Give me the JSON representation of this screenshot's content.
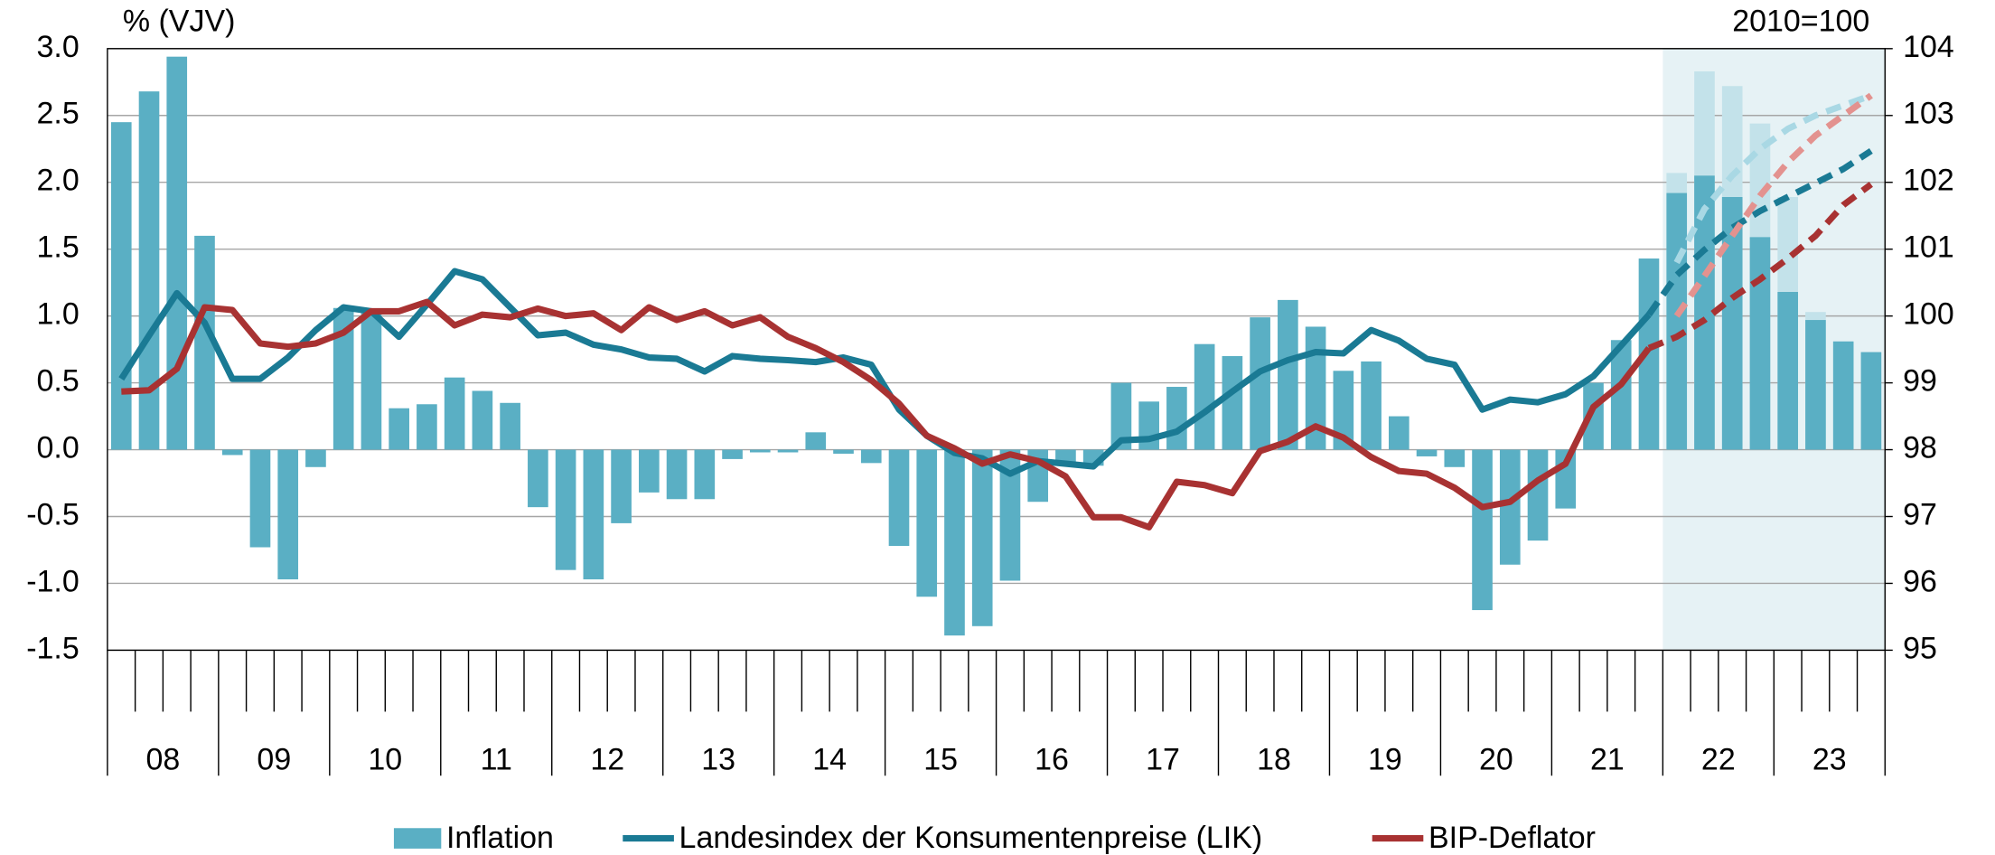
{
  "chart_data": {
    "type": "bar_line",
    "y_label": "% (VJV)",
    "y2_label": "2010=100",
    "categories": [
      "08",
      "09",
      "10",
      "11",
      "12",
      "13",
      "14",
      "15",
      "16",
      "17",
      "18",
      "19",
      "20",
      "21",
      "22",
      "23"
    ],
    "ylim": [
      -1.5,
      3
    ],
    "yticks": [
      {
        "value": 3,
        "label": "3.0"
      },
      2.5,
      {
        "value": 2,
        "label": "2.0"
      },
      1.5,
      {
        "value": 1,
        "label": "1.0"
      },
      0.5,
      {
        "value": 0,
        "label": "0.0"
      },
      -0.5,
      {
        "value": -1,
        "label": "-1.0"
      },
      -1.5
    ],
    "y2lim": [
      95,
      104
    ],
    "y2ticks": [
      95,
      96,
      97,
      98,
      99,
      100,
      101,
      102,
      103,
      104
    ],
    "grid": true,
    "forecast_from": "22",
    "forecast_shading_color": "#e6f2f5",
    "series": [
      {
        "name": "Inflation",
        "type": "bar",
        "color": "#5aafc4",
        "previous_color": "#c3e2ea",
        "values": [
          [
            2.45,
            2.68,
            2.94,
            1.6
          ],
          [
            -0.04,
            -0.73,
            -0.97,
            -0.13
          ],
          [
            1.06,
            1.04,
            0.31,
            0.34
          ],
          [
            0.54,
            0.44,
            0.35,
            -0.43
          ],
          [
            -0.9,
            -0.97,
            -0.55,
            -0.32
          ],
          [
            -0.37,
            -0.37,
            -0.07,
            -0.02
          ],
          [
            -0.02,
            0.13,
            -0.03,
            -0.1
          ],
          [
            -0.72,
            -1.1,
            -1.39,
            -1.32
          ],
          [
            -0.98,
            -0.39,
            -0.12,
            -0.12
          ],
          [
            0.5,
            0.36,
            0.47,
            0.79
          ],
          [
            0.7,
            0.99,
            1.12,
            0.92
          ],
          [
            0.59,
            0.66,
            0.25,
            -0.05
          ],
          [
            -0.13,
            -1.2,
            -0.86,
            -0.68
          ],
          [
            -0.44,
            0.5,
            0.82,
            1.43
          ],
          [
            1.92,
            2.05,
            1.89,
            1.59
          ],
          [
            1.18,
            0.97,
            0.81,
            0.73
          ]
        ],
        "previous_values": [
          [
            null,
            null,
            null,
            null
          ],
          [
            null,
            null,
            null,
            null
          ],
          [
            null,
            null,
            null,
            null
          ],
          [
            null,
            null,
            null,
            null
          ],
          [
            null,
            null,
            null,
            null
          ],
          [
            null,
            null,
            null,
            null
          ],
          [
            null,
            null,
            null,
            null
          ],
          [
            null,
            null,
            null,
            null
          ],
          [
            null,
            null,
            null,
            null
          ],
          [
            null,
            null,
            null,
            null
          ],
          [
            null,
            null,
            null,
            null
          ],
          [
            null,
            null,
            null,
            null
          ],
          [
            null,
            null,
            null,
            null
          ],
          [
            null,
            null,
            null,
            null
          ],
          [
            2.07,
            2.83,
            2.72,
            2.44
          ],
          [
            1.89,
            1.03,
            null,
            null
          ]
        ]
      },
      {
        "name": "Landesindex der Konsumentenpreise (LIK)",
        "type": "line",
        "axis": "y2",
        "color": "#1a7a94",
        "previous_color": "#a9d8e4",
        "values": [
          [
            99.06,
            99.71,
            100.34,
            99.9
          ],
          [
            99.06,
            99.06,
            99.38,
            99.79
          ],
          [
            100.13,
            100.07,
            99.69,
            100.17
          ],
          [
            100.67,
            100.55,
            100.13,
            99.71
          ],
          [
            99.75,
            99.57,
            99.5,
            99.38
          ],
          [
            99.36,
            99.17,
            99.4,
            99.36
          ],
          [
            99.34,
            99.31,
            99.38,
            99.27
          ],
          [
            98.6,
            98.21,
            97.95,
            97.87
          ],
          [
            97.64,
            97.83,
            97.79,
            97.75
          ],
          [
            98.14,
            98.16,
            98.27,
            98.56
          ],
          [
            98.87,
            99.17,
            99.34,
            99.46
          ],
          [
            99.44,
            99.79,
            99.63,
            99.36
          ],
          [
            99.27,
            98.6,
            98.75,
            98.71
          ],
          [
            98.83,
            99.1,
            99.56,
            100.02
          ],
          [
            100.61,
            100.99,
            101.32,
            101.57
          ],
          [
            101.78,
            101.99,
            102.2,
            102.47
          ]
        ],
        "previous_values": [
          [
            null,
            null,
            null,
            null
          ],
          [
            null,
            null,
            null,
            null
          ],
          [
            null,
            null,
            null,
            null
          ],
          [
            null,
            null,
            null,
            null
          ],
          [
            null,
            null,
            null,
            null
          ],
          [
            null,
            null,
            null,
            null
          ],
          [
            null,
            null,
            null,
            null
          ],
          [
            null,
            null,
            null,
            null
          ],
          [
            null,
            null,
            null,
            null
          ],
          [
            null,
            null,
            null,
            null
          ],
          [
            null,
            null,
            null,
            null
          ],
          [
            null,
            null,
            null,
            null
          ],
          [
            null,
            null,
            null,
            null
          ],
          [
            null,
            null,
            null,
            null
          ],
          [
            100.8,
            101.6,
            102.1,
            102.5
          ],
          [
            102.8,
            103.0,
            103.15,
            103.3
          ]
        ]
      },
      {
        "name": "BIP-Deflator",
        "type": "line",
        "axis": "y2",
        "color": "#a83232",
        "previous_color": "#e3928f",
        "values": [
          [
            98.87,
            98.89,
            99.21,
            100.13
          ],
          [
            100.09,
            99.59,
            99.54,
            99.59
          ],
          [
            99.75,
            100.07,
            100.07,
            100.21
          ],
          [
            99.86,
            100.02,
            99.98,
            100.11
          ],
          [
            100.0,
            100.04,
            99.79,
            100.13
          ],
          [
            99.94,
            100.07,
            99.86,
            99.98
          ],
          [
            99.69,
            99.52,
            99.31,
            99.04
          ],
          [
            98.69,
            98.21,
            98.02,
            97.79
          ],
          [
            97.93,
            97.83,
            97.6,
            96.99
          ],
          [
            96.99,
            96.84,
            97.52,
            97.47
          ],
          [
            97.35,
            97.98,
            98.12,
            98.35
          ],
          [
            98.18,
            97.89,
            97.68,
            97.64
          ],
          [
            97.43,
            97.14,
            97.22,
            97.54
          ],
          [
            97.79,
            98.64,
            98.98,
            99.52
          ],
          [
            99.69,
            99.94,
            100.27,
            100.55
          ],
          [
            100.86,
            101.2,
            101.66,
            101.97
          ]
        ],
        "previous_values": [
          [
            null,
            null,
            null,
            null
          ],
          [
            null,
            null,
            null,
            null
          ],
          [
            null,
            null,
            null,
            null
          ],
          [
            null,
            null,
            null,
            null
          ],
          [
            null,
            null,
            null,
            null
          ],
          [
            null,
            null,
            null,
            null
          ],
          [
            null,
            null,
            null,
            null
          ],
          [
            null,
            null,
            null,
            null
          ],
          [
            null,
            null,
            null,
            null
          ],
          [
            null,
            null,
            null,
            null
          ],
          [
            null,
            null,
            null,
            null
          ],
          [
            null,
            null,
            null,
            null
          ],
          [
            null,
            null,
            null,
            null
          ],
          [
            null,
            null,
            null,
            null
          ],
          [
            100.0,
            100.6,
            101.2,
            101.8
          ],
          [
            102.3,
            102.7,
            103.0,
            103.3
          ]
        ]
      }
    ]
  }
}
